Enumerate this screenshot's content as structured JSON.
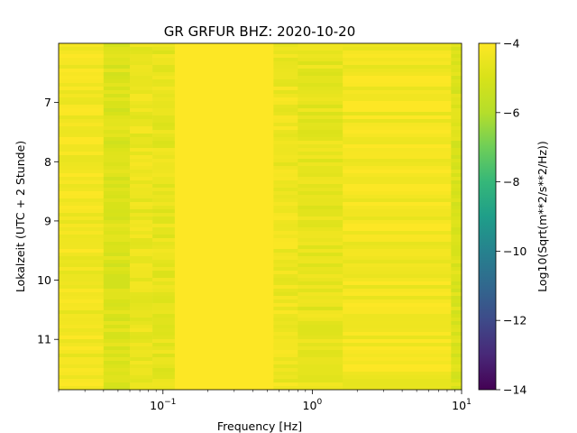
{
  "chart_data": {
    "type": "heatmap",
    "title": "GR GRFUR  BHZ: 2020-10-20",
    "xlabel": "Frequency [Hz]",
    "ylabel": "Lokalzeit (UTC + 2 Stunde)",
    "colorbar_label": "Log10(Sqrt(m**2/s**2/Hz))",
    "x_scale": "log",
    "xlim": [
      0.02,
      10
    ],
    "x_ticks": [
      {
        "value": 0.1,
        "base": "10",
        "exp": "−1"
      },
      {
        "value": 1,
        "base": "10",
        "exp": "0"
      },
      {
        "value": 10,
        "base": "10",
        "exp": "1"
      }
    ],
    "ylim": [
      6.0,
      11.85
    ],
    "y_inverted": true,
    "y_ticks": [
      7,
      8,
      9,
      10,
      11
    ],
    "colorbar_range": [
      -14,
      -4
    ],
    "colorbar_ticks": [
      "−4",
      "−6",
      "−8",
      "−10",
      "−12",
      "−14"
    ],
    "colormap": "viridis",
    "frequency_bands": [
      {
        "f_from": 0.02,
        "f_to": 0.04,
        "level": -4.3
      },
      {
        "f_from": 0.04,
        "f_to": 0.06,
        "level": -4.9
      },
      {
        "f_from": 0.06,
        "f_to": 0.085,
        "level": -4.5
      },
      {
        "f_from": 0.085,
        "f_to": 0.12,
        "level": -4.6
      },
      {
        "f_from": 0.12,
        "f_to": 0.55,
        "level": -4.0
      },
      {
        "f_from": 0.55,
        "f_to": 0.8,
        "level": -4.4
      },
      {
        "f_from": 0.8,
        "f_to": 1.6,
        "level": -4.6
      },
      {
        "f_from": 1.6,
        "f_to": 8.5,
        "level": -4.3
      },
      {
        "f_from": 8.5,
        "f_to": 10,
        "level": -4.9
      }
    ]
  }
}
